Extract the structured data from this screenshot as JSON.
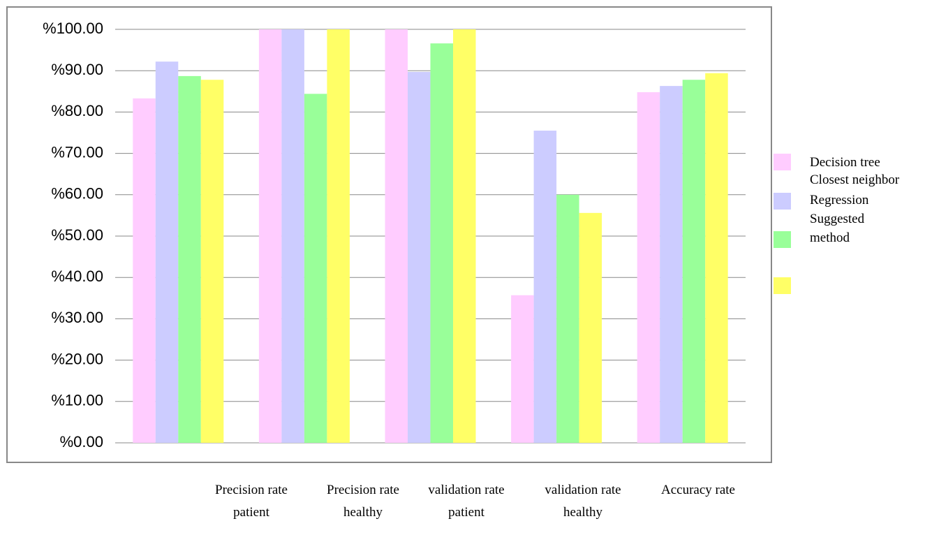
{
  "chart_data": {
    "type": "bar",
    "categories": [
      "Precision rate patient",
      "Precision rate healthy",
      "validation rate patient",
      "validation rate healthy",
      "Accuracy rate"
    ],
    "series": [
      {
        "name": "Decision tree",
        "color": "#ffccff",
        "values": [
          83.3,
          100,
          100,
          35.7,
          84.8
        ]
      },
      {
        "name": "Closest neighbor",
        "color": "#ccccff",
        "values": [
          92.2,
          100,
          89.7,
          75.5,
          86.3
        ]
      },
      {
        "name": "Regression",
        "color": "#99ff99",
        "values": [
          88.7,
          84.4,
          96.6,
          60,
          87.8
        ]
      },
      {
        "name": "Suggested method",
        "color": "#ffff66",
        "values": [
          87.8,
          100,
          100,
          55.6,
          89.4
        ]
      }
    ],
    "ylim": [
      0,
      100
    ],
    "yticks": [
      {
        "value": 0,
        "label": "%0.00"
      },
      {
        "value": 10,
        "label": "%10.00"
      },
      {
        "value": 20,
        "label": "%20.00"
      },
      {
        "value": 30,
        "label": "%30.00"
      },
      {
        "value": 40,
        "label": "%40.00"
      },
      {
        "value": 50,
        "label": "%50.00"
      },
      {
        "value": 60,
        "label": "%60.00"
      },
      {
        "value": 70,
        "label": "%70.00"
      },
      {
        "value": 80,
        "label": "%80.00"
      },
      {
        "value": 90,
        "label": "%90.00"
      },
      {
        "value": 100,
        "label": "%100.00"
      }
    ],
    "grid": true
  }
}
